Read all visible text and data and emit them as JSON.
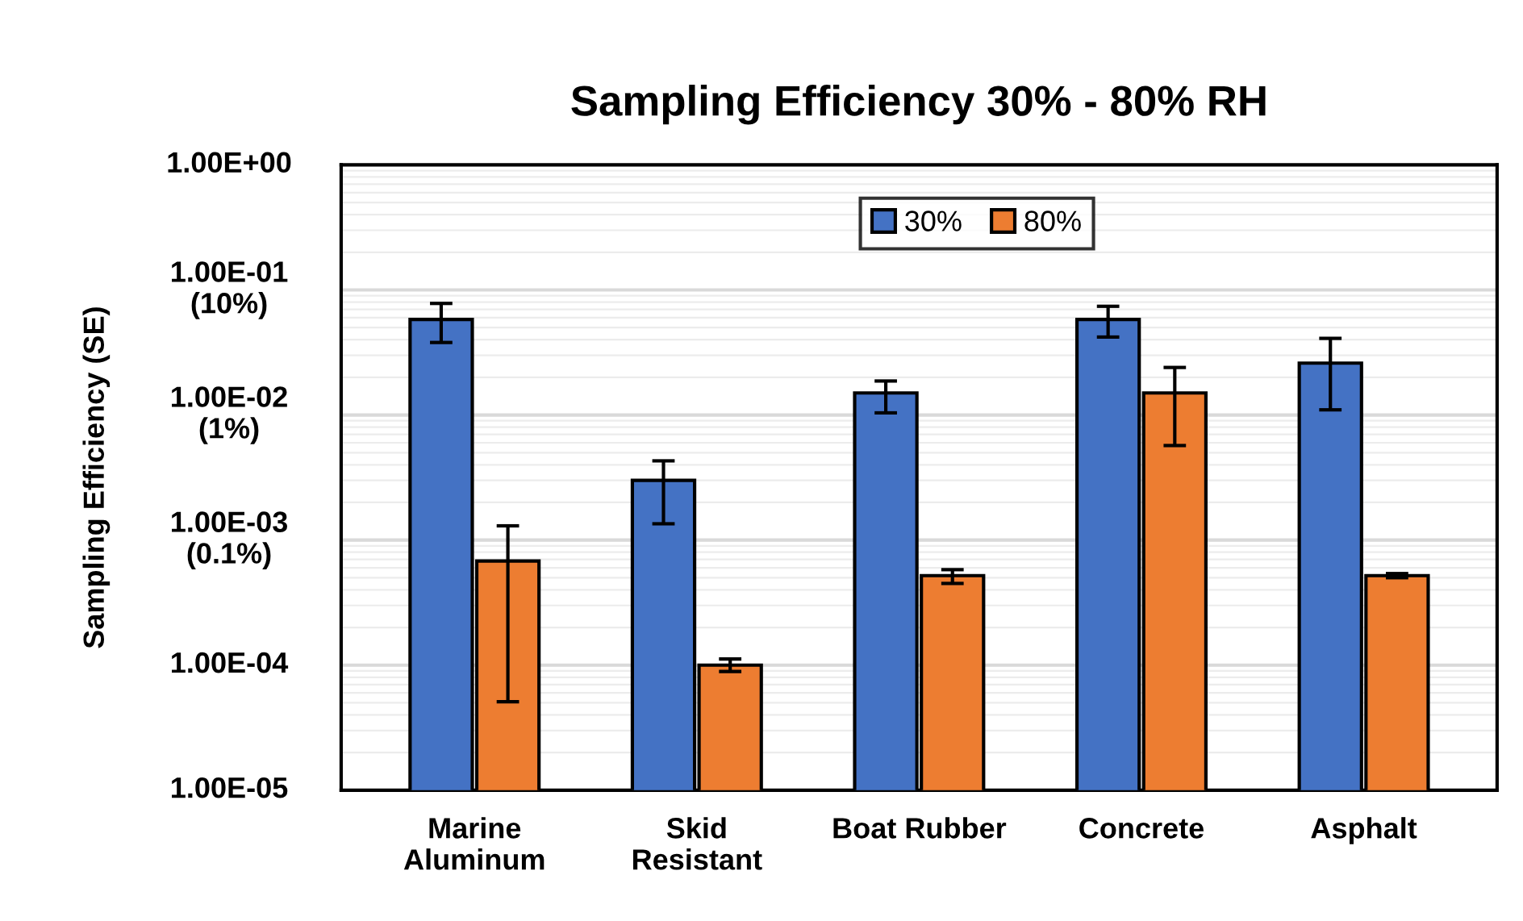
{
  "chart_data": {
    "type": "bar",
    "title": "Sampling Efficiency 30% - 80% RH",
    "ylabel": "Sampling Efficiency (SE)",
    "categories": [
      "Marine\nAluminum",
      "Skid\nResistant",
      "Boat Rubber",
      "Concrete",
      "Asphalt"
    ],
    "series": [
      {
        "name": "30%",
        "color": "#4472c4",
        "values": [
          0.058,
          0.003,
          0.015,
          0.058,
          0.026
        ],
        "errors": [
          [
            0.038,
            0.078
          ],
          [
            0.00135,
            0.0043
          ],
          [
            0.0104,
            0.0187
          ],
          [
            0.042,
            0.074
          ],
          [
            0.011,
            0.041
          ]
        ]
      },
      {
        "name": "80%",
        "color": "#ed7d31",
        "values": [
          0.00068,
          0.0001,
          0.00052,
          0.015,
          0.00052
        ],
        "errors": [
          [
            5.1e-05,
            0.0013
          ],
          [
            8.9e-05,
            0.000112
          ],
          [
            0.00045,
            0.00058
          ],
          [
            0.0057,
            0.024
          ],
          [
            0.0005,
            0.00054
          ]
        ]
      }
    ],
    "log": true,
    "ylim": [
      1e-05,
      1
    ],
    "yticks": [
      {
        "value": 1,
        "label": "1.00E+00"
      },
      {
        "value": 0.1,
        "label": "1.00E-01\n(10%)"
      },
      {
        "value": 0.01,
        "label": "1.00E-02\n(1%)"
      },
      {
        "value": 0.001,
        "label": "1.00E-03\n(0.1%)"
      },
      {
        "value": 0.0001,
        "label": "1.00E-04"
      },
      {
        "value": 1e-05,
        "label": "1.00E-05"
      }
    ],
    "grid": true,
    "legend": "top"
  }
}
